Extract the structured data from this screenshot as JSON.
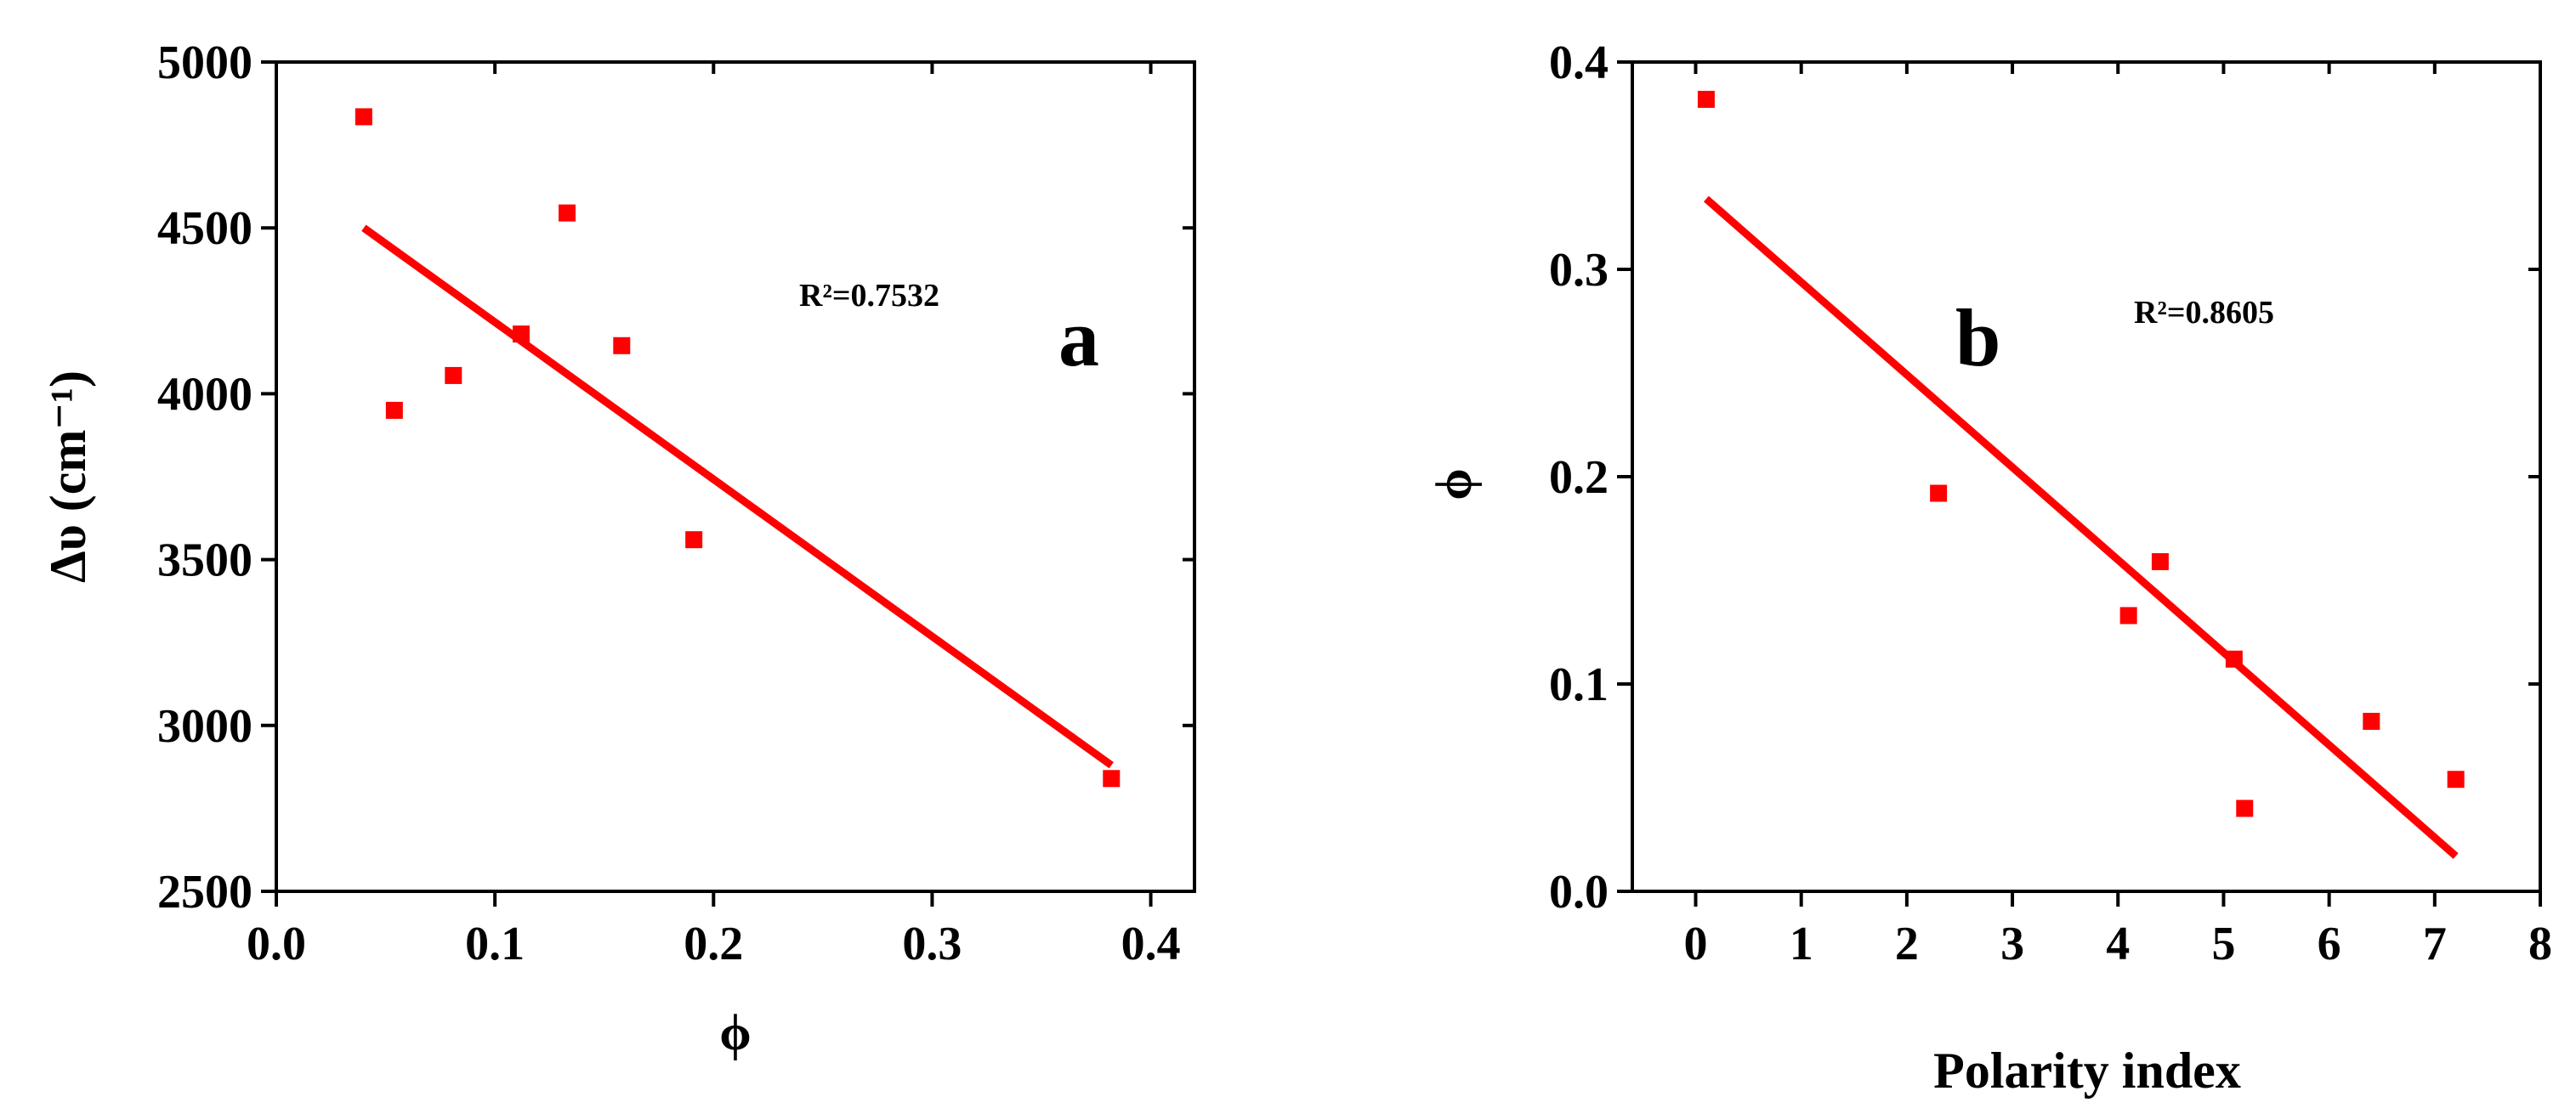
{
  "chart_data": [
    {
      "type": "scatter",
      "panel_label": "a",
      "xlabel": "ϕ",
      "ylabel": "Δυ (cm⁻¹)",
      "xlim": [
        0.0,
        0.42
      ],
      "ylim": [
        2500,
        5000
      ],
      "xticks": [
        "0.0",
        "0.1",
        "0.2",
        "0.3",
        "0.4"
      ],
      "xtick_values": [
        0.0,
        0.1,
        0.2,
        0.3,
        0.4
      ],
      "yticks": [
        "2500",
        "3000",
        "3500",
        "4000",
        "4500",
        "5000"
      ],
      "ytick_values": [
        2500,
        3000,
        3500,
        4000,
        4500,
        5000
      ],
      "annotation": "R²=0.7532",
      "grid": false,
      "marker_color": "#ff0000",
      "line_color": "#ff0000",
      "points": [
        {
          "x": 0.04,
          "y": 4835
        },
        {
          "x": 0.054,
          "y": 3950
        },
        {
          "x": 0.081,
          "y": 4055
        },
        {
          "x": 0.112,
          "y": 4180
        },
        {
          "x": 0.133,
          "y": 4545
        },
        {
          "x": 0.158,
          "y": 4145
        },
        {
          "x": 0.191,
          "y": 3560
        },
        {
          "x": 0.382,
          "y": 2840
        }
      ],
      "fit_line": [
        {
          "x": 0.04,
          "y": 4500
        },
        {
          "x": 0.382,
          "y": 2880
        }
      ]
    },
    {
      "type": "scatter",
      "panel_label": "b",
      "xlabel": "Polarity index",
      "ylabel": "ϕ",
      "xlim": [
        -0.6,
        8.0
      ],
      "ylim": [
        0.0,
        0.4
      ],
      "xticks": [
        "0",
        "1",
        "2",
        "3",
        "4",
        "5",
        "6",
        "7",
        "8"
      ],
      "xtick_values": [
        0,
        1,
        2,
        3,
        4,
        5,
        6,
        7,
        8
      ],
      "yticks": [
        "0.0",
        "0.1",
        "0.2",
        "0.3",
        "0.4"
      ],
      "ytick_values": [
        0.0,
        0.1,
        0.2,
        0.3,
        0.4
      ],
      "annotation": "R²=0.8605",
      "grid": false,
      "marker_color": "#ff0000",
      "line_color": "#ff0000",
      "points": [
        {
          "x": 0.1,
          "y": 0.382
        },
        {
          "x": 2.3,
          "y": 0.192
        },
        {
          "x": 4.1,
          "y": 0.133
        },
        {
          "x": 4.4,
          "y": 0.159
        },
        {
          "x": 5.1,
          "y": 0.112
        },
        {
          "x": 5.2,
          "y": 0.04
        },
        {
          "x": 6.4,
          "y": 0.082
        },
        {
          "x": 7.2,
          "y": 0.054
        }
      ],
      "fit_line": [
        {
          "x": 0.1,
          "y": 0.334
        },
        {
          "x": 7.2,
          "y": 0.017
        }
      ]
    }
  ]
}
